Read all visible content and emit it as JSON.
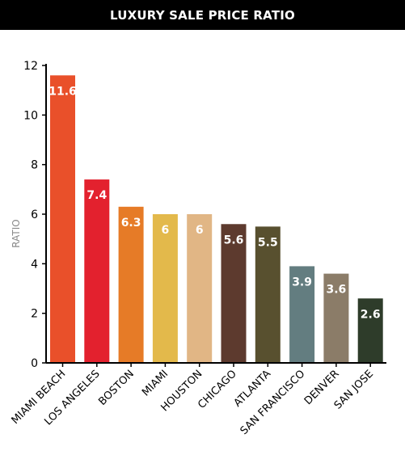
{
  "header": {
    "title": "LUXURY SALE PRICE RATIO"
  },
  "colors": {
    "title_bg": "#000000",
    "title_text": "#ffffff",
    "axis": "#000000",
    "ylabel": "#8a8a8a",
    "value_label": "#ffffff"
  },
  "chart_data": {
    "type": "bar",
    "title": "LUXURY SALE PRICE RATIO",
    "xlabel": "",
    "ylabel": "RATIO",
    "ylim": [
      0,
      12
    ],
    "yticks": [
      0,
      2,
      4,
      6,
      8,
      10,
      12
    ],
    "grid": false,
    "categories": [
      "MIAMI BEACH",
      "LOS ANGELES",
      "BOSTON",
      "MIAMI",
      "HOUSTON",
      "CHICAGO",
      "ATLANTA",
      "SAN FRANCISCO",
      "DENVER",
      "SAN JOSE"
    ],
    "values": [
      11.6,
      7.4,
      6.3,
      6,
      6,
      5.6,
      5.5,
      3.9,
      3.6,
      2.6
    ],
    "value_labels": [
      "11.6",
      "7.4",
      "6.3",
      "6",
      "6",
      "5.6",
      "5.5",
      "3.9",
      "3.6",
      "2.6"
    ],
    "bar_colors": [
      "#e9502a",
      "#e3212e",
      "#e67b27",
      "#e3b94b",
      "#e1b685",
      "#5d3a2e",
      "#58502f",
      "#637d80",
      "#8b7c68",
      "#2e3c2a"
    ]
  }
}
